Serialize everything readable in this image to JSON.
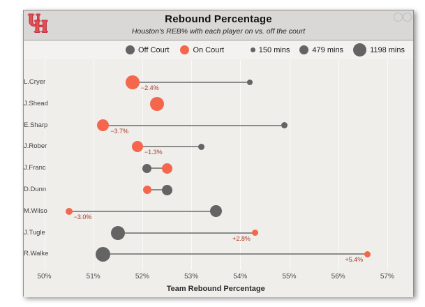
{
  "header": {
    "title": "Rebound Percentage",
    "subtitle": "Houston's REB% with each player on vs. off the court",
    "logo": {
      "letter_u": "U",
      "letter_h": "H"
    }
  },
  "legend": {
    "off_court_label": "Off Court",
    "on_court_label": "On Court",
    "sizes": [
      {
        "label": "150 mins",
        "diameter": 7
      },
      {
        "label": "479 mins",
        "diameter": 13
      },
      {
        "label": "1198 mins",
        "diameter": 19
      }
    ]
  },
  "colors": {
    "on_court": "#f4674c",
    "off_court": "#646464",
    "diff_label": "#a63b28",
    "header_bg": "#d9d8d6",
    "plot_bg": "#efeeeb"
  },
  "chart_data": {
    "type": "dumbbell",
    "title": "Rebound Percentage",
    "subtitle": "Houston's REB% with each player on vs. off the court",
    "xlabel": "Team Rebound Percentage",
    "x_ticks": [
      "50%",
      "51%",
      "52%",
      "53%",
      "54%",
      "55%",
      "56%",
      "57%"
    ],
    "x_tick_values": [
      50,
      51,
      52,
      53,
      54,
      55,
      56,
      57
    ],
    "x_range": [
      50,
      57.5
    ],
    "grid": true,
    "legend_position": "top",
    "players": [
      {
        "name": "L.Cryer",
        "on": 51.8,
        "off": 54.2,
        "diff_label": "−2.4%",
        "on_d": 20,
        "off_d": 8
      },
      {
        "name": "J.Shead",
        "on": 52.3,
        "off": null,
        "diff_label": "",
        "on_d": 20,
        "off_d": 0
      },
      {
        "name": "E.Sharp",
        "on": 51.2,
        "off": 54.9,
        "diff_label": "−3.7%",
        "on_d": 17,
        "off_d": 9
      },
      {
        "name": "J.Rober",
        "on": 51.9,
        "off": 53.2,
        "diff_label": "−1.3%",
        "on_d": 16,
        "off_d": 9
      },
      {
        "name": "J.Franc",
        "on": 52.5,
        "off": 52.1,
        "diff_label": "",
        "on_d": 15,
        "off_d": 13
      },
      {
        "name": "D.Dunn",
        "on": 52.1,
        "off": 52.5,
        "diff_label": "",
        "on_d": 12,
        "off_d": 15
      },
      {
        "name": "M.Wilso",
        "on": 50.5,
        "off": 53.5,
        "diff_label": "−3.0%",
        "on_d": 10,
        "off_d": 17
      },
      {
        "name": "J.Tugle",
        "on": 54.3,
        "off": 51.5,
        "diff_label": "+2.8%",
        "on_d": 9,
        "off_d": 20
      },
      {
        "name": "R.Walke",
        "on": 56.6,
        "off": 51.2,
        "diff_label": "+5.4%",
        "on_d": 9,
        "off_d": 21
      }
    ]
  }
}
